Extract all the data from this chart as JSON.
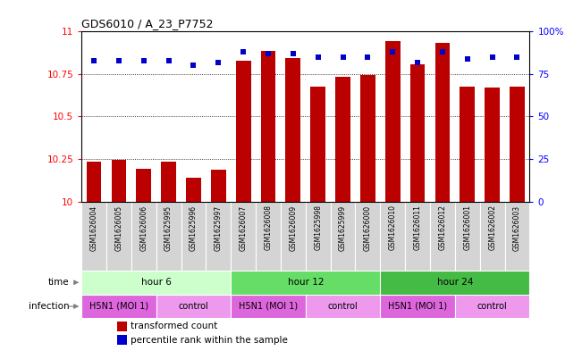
{
  "title": "GDS6010 / A_23_P7752",
  "samples": [
    "GSM1626004",
    "GSM1626005",
    "GSM1626006",
    "GSM1625995",
    "GSM1625996",
    "GSM1625997",
    "GSM1626007",
    "GSM1626008",
    "GSM1626009",
    "GSM1625998",
    "GSM1625999",
    "GSM1626000",
    "GSM1626010",
    "GSM1626011",
    "GSM1626012",
    "GSM1626001",
    "GSM1626002",
    "GSM1626003"
  ],
  "bar_values": [
    10.235,
    10.245,
    10.19,
    10.235,
    10.14,
    10.185,
    10.83,
    10.885,
    10.845,
    10.675,
    10.735,
    10.745,
    10.945,
    10.805,
    10.935,
    10.675,
    10.67,
    10.675
  ],
  "percentile_values": [
    83,
    83,
    83,
    83,
    80,
    82,
    88,
    87,
    87,
    85,
    85,
    85,
    88,
    82,
    88,
    84,
    85,
    85
  ],
  "ylim_left": [
    10.0,
    11.0
  ],
  "ylim_right": [
    0,
    100
  ],
  "yticks_left": [
    10.0,
    10.25,
    10.5,
    10.75,
    11.0
  ],
  "yticks_right": [
    0,
    25,
    50,
    75,
    100
  ],
  "ytick_labels_left": [
    "10",
    "10.25",
    "10.5",
    "10.75",
    "11"
  ],
  "ytick_labels_right": [
    "0",
    "25",
    "50",
    "75",
    "100%"
  ],
  "bar_color": "#bb0000",
  "dot_color": "#0000cc",
  "background_color": "#ffffff",
  "plot_bg_color": "#ffffff",
  "xticklabel_bg": "#d4d4d4",
  "time_groups": [
    {
      "label": "hour 6",
      "start": 0,
      "end": 6,
      "color": "#ccffcc"
    },
    {
      "label": "hour 12",
      "start": 6,
      "end": 12,
      "color": "#66dd66"
    },
    {
      "label": "hour 24",
      "start": 12,
      "end": 18,
      "color": "#44bb44"
    }
  ],
  "infection_groups": [
    {
      "label": "H5N1 (MOI 1)",
      "start": 0,
      "end": 3,
      "color": "#dd66dd"
    },
    {
      "label": "control",
      "start": 3,
      "end": 6,
      "color": "#ee99ee"
    },
    {
      "label": "H5N1 (MOI 1)",
      "start": 6,
      "end": 9,
      "color": "#dd66dd"
    },
    {
      "label": "control",
      "start": 9,
      "end": 12,
      "color": "#ee99ee"
    },
    {
      "label": "H5N1 (MOI 1)",
      "start": 12,
      "end": 15,
      "color": "#dd66dd"
    },
    {
      "label": "control",
      "start": 15,
      "end": 18,
      "color": "#ee99ee"
    }
  ],
  "legend_items": [
    {
      "label": "transformed count",
      "color": "#bb0000"
    },
    {
      "label": "percentile rank within the sample",
      "color": "#0000cc"
    }
  ]
}
